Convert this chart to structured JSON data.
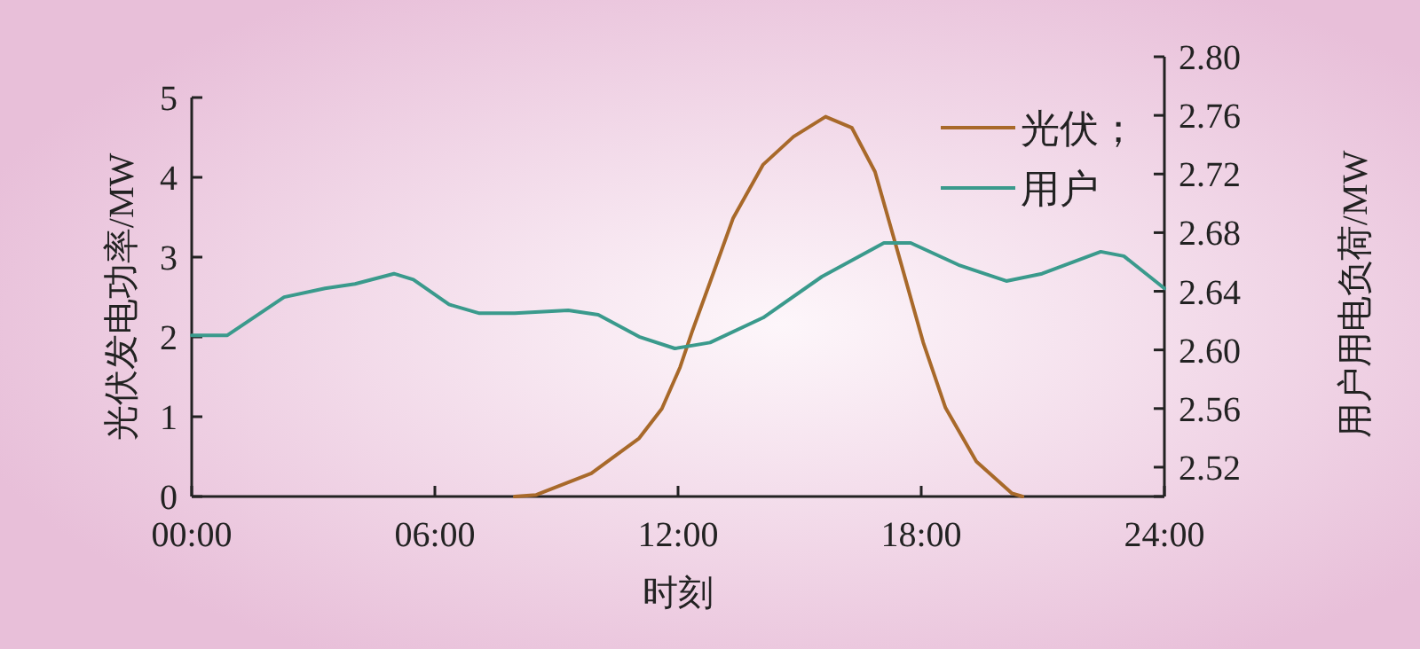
{
  "chart_data": {
    "type": "line",
    "xlabel": "时刻",
    "ylabel": "光伏发电功率/MW",
    "y2label": "用户用电负荷/MW",
    "xlim": [
      0,
      24
    ],
    "xticks": [
      {
        "value": 0,
        "label": "00:00"
      },
      {
        "value": 6,
        "label": "06:00"
      },
      {
        "value": 12,
        "label": "12:00"
      },
      {
        "value": 18,
        "label": "18:00"
      },
      {
        "value": 24,
        "label": "24:00"
      }
    ],
    "ylim": [
      0,
      5
    ],
    "yticks": [
      0,
      1,
      2,
      3,
      4,
      5
    ],
    "y2lim": [
      2.5,
      2.8
    ],
    "y2ticks": [
      {
        "value": 2.5,
        "label": null
      },
      {
        "value": 2.52,
        "label": "2.52"
      },
      {
        "value": 2.56,
        "label": "2.56"
      },
      {
        "value": 2.6,
        "label": "2.60"
      },
      {
        "value": 2.64,
        "label": "2.64"
      },
      {
        "value": 2.68,
        "label": "2.68"
      },
      {
        "value": 2.72,
        "label": "2.72"
      },
      {
        "value": 2.76,
        "label": "2.76"
      },
      {
        "value": 2.8,
        "label": "2.80"
      }
    ],
    "grid": false,
    "legend": "top right",
    "series": [
      {
        "name": "光伏；",
        "color": "#a8692a",
        "x": [
          7.97,
          8.5,
          9.86,
          11.04,
          11.6,
          12.05,
          12.35,
          12.8,
          13.36,
          14.1,
          14.85,
          15.64,
          16.29,
          16.86,
          17.48,
          18.05,
          18.6,
          19.36,
          20.24,
          20.5
        ],
        "values": [
          0,
          0.02,
          0.29,
          0.73,
          1.1,
          1.62,
          2.07,
          2.7,
          3.49,
          4.16,
          4.51,
          4.76,
          4.62,
          4.07,
          2.96,
          1.93,
          1.11,
          0.44,
          0.04,
          0
        ]
      },
      {
        "name": "用户",
        "color": "#3a9a8c",
        "axis": "y2",
        "x": [
          0,
          0.88,
          2.28,
          3.29,
          4.03,
          4.99,
          5.47,
          6.35,
          7.1,
          7.97,
          9.29,
          10.03,
          11.04,
          11.92,
          12.79,
          14.1,
          15.55,
          17.08,
          17.74,
          18.92,
          20.1,
          20.98,
          22.43,
          23.0,
          24
        ],
        "values": [
          2.61,
          2.61,
          2.636,
          2.642,
          2.645,
          2.652,
          2.648,
          2.631,
          2.625,
          2.625,
          2.627,
          2.624,
          2.609,
          2.601,
          2.605,
          2.622,
          2.65,
          2.673,
          2.673,
          2.658,
          2.647,
          2.652,
          2.667,
          2.664,
          2.642
        ]
      }
    ]
  }
}
